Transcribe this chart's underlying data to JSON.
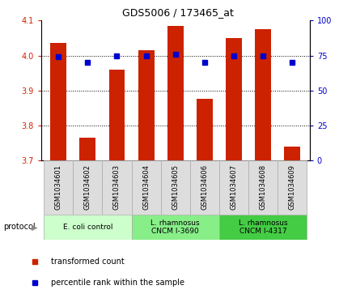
{
  "title": "GDS5006 / 173465_at",
  "samples": [
    "GSM1034601",
    "GSM1034602",
    "GSM1034603",
    "GSM1034604",
    "GSM1034605",
    "GSM1034606",
    "GSM1034607",
    "GSM1034608",
    "GSM1034609"
  ],
  "transformed_counts": [
    4.035,
    3.765,
    3.96,
    4.015,
    4.085,
    3.875,
    4.05,
    4.075,
    3.74
  ],
  "percentile_ranks": [
    74,
    70,
    75,
    75,
    76,
    70,
    75,
    75,
    70
  ],
  "ylim_left": [
    3.7,
    4.1
  ],
  "ylim_right": [
    0,
    100
  ],
  "yticks_left": [
    3.7,
    3.8,
    3.9,
    4.0,
    4.1
  ],
  "yticks_right": [
    0,
    25,
    50,
    75,
    100
  ],
  "bar_color": "#cc2200",
  "dot_color": "#0000cc",
  "bar_width": 0.55,
  "bar_bottom": 3.7,
  "x_positions": [
    1,
    2,
    3,
    4,
    5,
    6,
    7,
    8,
    9
  ],
  "group_colors": [
    "#ccffcc",
    "#88ee88",
    "#44cc44"
  ],
  "group_labels": [
    "E. coli control",
    "L. rhamnosus\nCNCM I-3690",
    "L. rhamnosus\nCNCM I-4317"
  ],
  "group_ranges": [
    [
      1,
      3
    ],
    [
      4,
      6
    ],
    [
      7,
      9
    ]
  ],
  "sample_box_color": "#dddddd",
  "title_fontsize": 9,
  "axis_fontsize": 7,
  "label_fontsize": 6,
  "group_fontsize": 6.5,
  "legend_fontsize": 7
}
